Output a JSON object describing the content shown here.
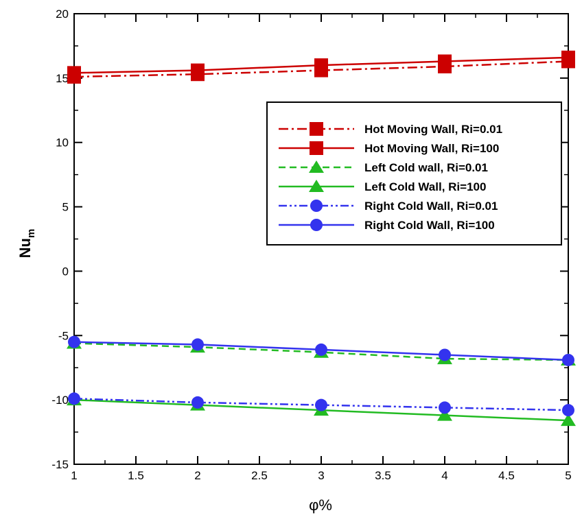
{
  "chart_data": {
    "type": "line",
    "x": [
      1,
      2,
      3,
      4,
      5
    ],
    "xlabel": "φ%",
    "ylabel_main": "Nu",
    "ylabel_sub": "m",
    "xlim": [
      1,
      5
    ],
    "ylim": [
      -15,
      20
    ],
    "xticks": [
      1,
      1.5,
      2,
      2.5,
      3,
      3.5,
      4,
      4.5,
      5
    ],
    "yticks": [
      -15,
      -10,
      -5,
      0,
      5,
      10,
      15,
      20
    ],
    "grid": false,
    "legend_position": "right",
    "series": [
      {
        "name": "Hot Moving Wall, Ri=0.01",
        "values": [
          15.1,
          15.3,
          15.6,
          15.9,
          16.3
        ],
        "color": "#cc0000",
        "marker": "square",
        "dash": "dashdot"
      },
      {
        "name": "Hot Moving Wall, Ri=100",
        "values": [
          15.4,
          15.6,
          16.0,
          16.3,
          16.6
        ],
        "color": "#cc0000",
        "marker": "square",
        "dash": "solid"
      },
      {
        "name": "Left Cold wall, Ri=0.01",
        "values": [
          -5.6,
          -5.9,
          -6.3,
          -6.8,
          -6.9
        ],
        "color": "#22bb22",
        "marker": "triangle",
        "dash": "dashed"
      },
      {
        "name": "Left Cold Wall, Ri=100",
        "values": [
          -10.0,
          -10.4,
          -10.8,
          -11.2,
          -11.6
        ],
        "color": "#22bb22",
        "marker": "triangle",
        "dash": "solid"
      },
      {
        "name": "Right Cold Wall, Ri=0.01",
        "values": [
          -9.9,
          -10.2,
          -10.4,
          -10.6,
          -10.8
        ],
        "color": "#3333ee",
        "marker": "circle",
        "dash": "dashdotdot"
      },
      {
        "name": "Right Cold Wall, Ri=100",
        "values": [
          -5.5,
          -5.7,
          -6.1,
          -6.5,
          -6.9
        ],
        "color": "#3333ee",
        "marker": "circle",
        "dash": "solid"
      }
    ]
  }
}
